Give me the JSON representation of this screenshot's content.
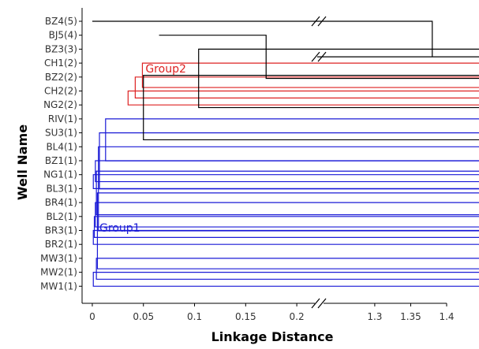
{
  "chart_data": {
    "type": "dendrogram",
    "title": "",
    "xlabel": "Linkage Distance",
    "ylabel": "Well Name",
    "orientation": "horizontal",
    "axis_break": {
      "from": 0.22,
      "to": 1.22
    },
    "x_segments": [
      [
        -0.01,
        0.22
      ],
      [
        1.22,
        1.4
      ]
    ],
    "xticks": [
      0,
      0.05,
      0.1,
      0.15,
      0.2,
      1.3,
      1.35,
      1.4
    ],
    "xtick_labels": [
      "0",
      "0.05",
      "0.1",
      "0.15",
      "0.2",
      "1.3",
      "1.35",
      "1.4"
    ],
    "leaves": [
      "BZ4(5)",
      "BJ5(4)",
      "BZ3(3)",
      "CH1(2)",
      "BZ2(2)",
      "CH2(2)",
      "NG2(2)",
      "RIV(1)",
      "SU3(1)",
      "BL4(1)",
      "BZ1(1)",
      "NG1(1)",
      "BL3(1)",
      "BR4(1)",
      "BL2(1)",
      "BR3(1)",
      "BR2(1)",
      "MW3(1)",
      "MW2(1)",
      "MW1(1)"
    ],
    "groups": [
      {
        "label": "Group2",
        "color": "#dd2222",
        "label_x": 0.052,
        "label_leaf": 3.4
      },
      {
        "label": "Group1",
        "color": "#1a1ad6",
        "label_x": 0.007,
        "label_leaf": 14.8
      }
    ],
    "merges": [
      {
        "a": [
          18,
          18
        ],
        "b": [
          19,
          19
        ],
        "h": 0.001,
        "group": 1
      },
      {
        "a": [
          17,
          17
        ],
        "b": [
          18.5,
          18.5
        ],
        "h": 0.004,
        "group": 1
      },
      {
        "a": [
          15,
          15
        ],
        "b": [
          16,
          16
        ],
        "h": 0.001,
        "group": 1
      },
      {
        "a": [
          14,
          14
        ],
        "b": [
          15.5,
          15.5
        ],
        "h": 0.002,
        "group": 1
      },
      {
        "a": [
          13,
          13
        ],
        "b": [
          14.75,
          14.75
        ],
        "h": 0.003,
        "group": 1
      },
      {
        "a": [
          12,
          12
        ],
        "b": [
          11,
          11
        ],
        "h": 0.001,
        "group": 1
      },
      {
        "a": [
          11.5,
          11.5
        ],
        "b": [
          10,
          10
        ],
        "h": 0.003,
        "group": 1
      },
      {
        "a": [
          10.75,
          10.75
        ],
        "b": [
          13.875,
          13.875
        ],
        "h": 0.004,
        "group": 1
      },
      {
        "a": [
          12.31,
          12.31
        ],
        "b": [
          17.75,
          17.75
        ],
        "h": 0.005,
        "group": 1
      },
      {
        "a": [
          9,
          9
        ],
        "b": [
          15.03,
          15.03
        ],
        "h": 0.006,
        "group": 1
      },
      {
        "a": [
          8,
          8
        ],
        "b": [
          12.02,
          12.02
        ],
        "h": 0.007,
        "group": 1
      },
      {
        "a": [
          7,
          7
        ],
        "b": [
          10.01,
          10.01
        ],
        "h": 0.013,
        "group": 1
      },
      {
        "a": [
          5,
          5
        ],
        "b": [
          6,
          6
        ],
        "h": 0.035,
        "group": 2
      },
      {
        "a": [
          4,
          4
        ],
        "b": [
          5.5,
          5.5
        ],
        "h": 0.042,
        "group": 2
      },
      {
        "a": [
          3,
          3
        ],
        "b": [
          4.75,
          4.75
        ],
        "h": 0.049,
        "group": 2
      },
      {
        "a": [
          3.875,
          3.875
        ],
        "b": [
          8.5,
          8.5
        ],
        "h": 0.05,
        "group": 0
      },
      {
        "a": [
          2,
          2
        ],
        "b": [
          6.19,
          6.19
        ],
        "h": 0.104,
        "group": 0
      },
      {
        "a": [
          1,
          1
        ],
        "b": [
          4.1,
          4.1
        ],
        "h": 0.17,
        "group": 0
      },
      {
        "a": [
          0,
          0
        ],
        "b": [
          2.55,
          2.55
        ],
        "h": 1.38,
        "group": 0
      }
    ],
    "colors": {
      "group0": "#000000",
      "group1": "#1a1ad6",
      "group2": "#dd2222",
      "axis": "#000000"
    },
    "grid": false,
    "legend": "none"
  }
}
